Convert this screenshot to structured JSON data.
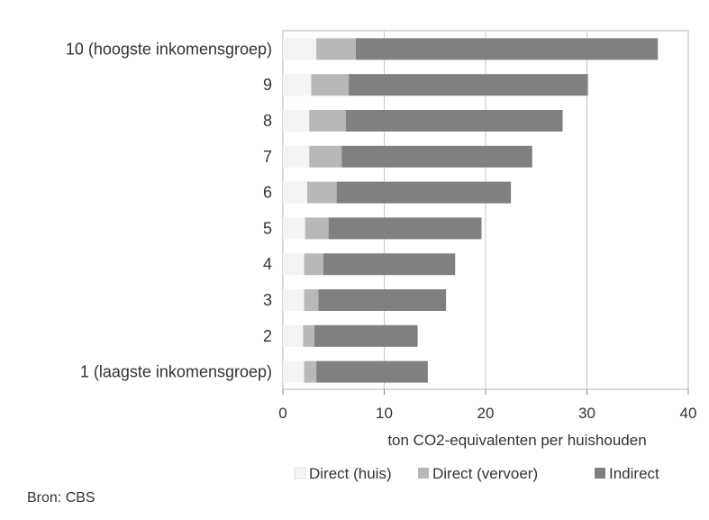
{
  "chart_data": {
    "type": "bar",
    "orientation": "horizontal",
    "stacked": true,
    "categories": [
      "10 (hoogste inkomensgroep)",
      "9",
      "8",
      "7",
      "6",
      "5",
      "4",
      "3",
      "2",
      "1 (laagste inkomensgroep)"
    ],
    "series": [
      {
        "name": "Direct (huis)",
        "color": "#f4f4f4",
        "values": [
          3.3,
          2.8,
          2.6,
          2.6,
          2.4,
          2.2,
          2.1,
          2.1,
          2.0,
          2.1
        ]
      },
      {
        "name": "Direct (vervoer)",
        "color": "#b8b8b8",
        "values": [
          3.9,
          3.7,
          3.6,
          3.2,
          2.9,
          2.3,
          1.9,
          1.4,
          1.1,
          1.2
        ]
      },
      {
        "name": "Indirect",
        "color": "#808080",
        "values": [
          29.8,
          23.6,
          21.4,
          18.8,
          17.2,
          15.1,
          13.0,
          12.6,
          10.2,
          11.0
        ]
      }
    ],
    "xlabel": "ton CO2-equivalenten per huishouden",
    "xlim": [
      0,
      40
    ],
    "xticks": [
      0,
      10,
      20,
      30,
      40
    ],
    "grid": true,
    "legend_position": "bottom"
  },
  "source": "Bron: CBS"
}
